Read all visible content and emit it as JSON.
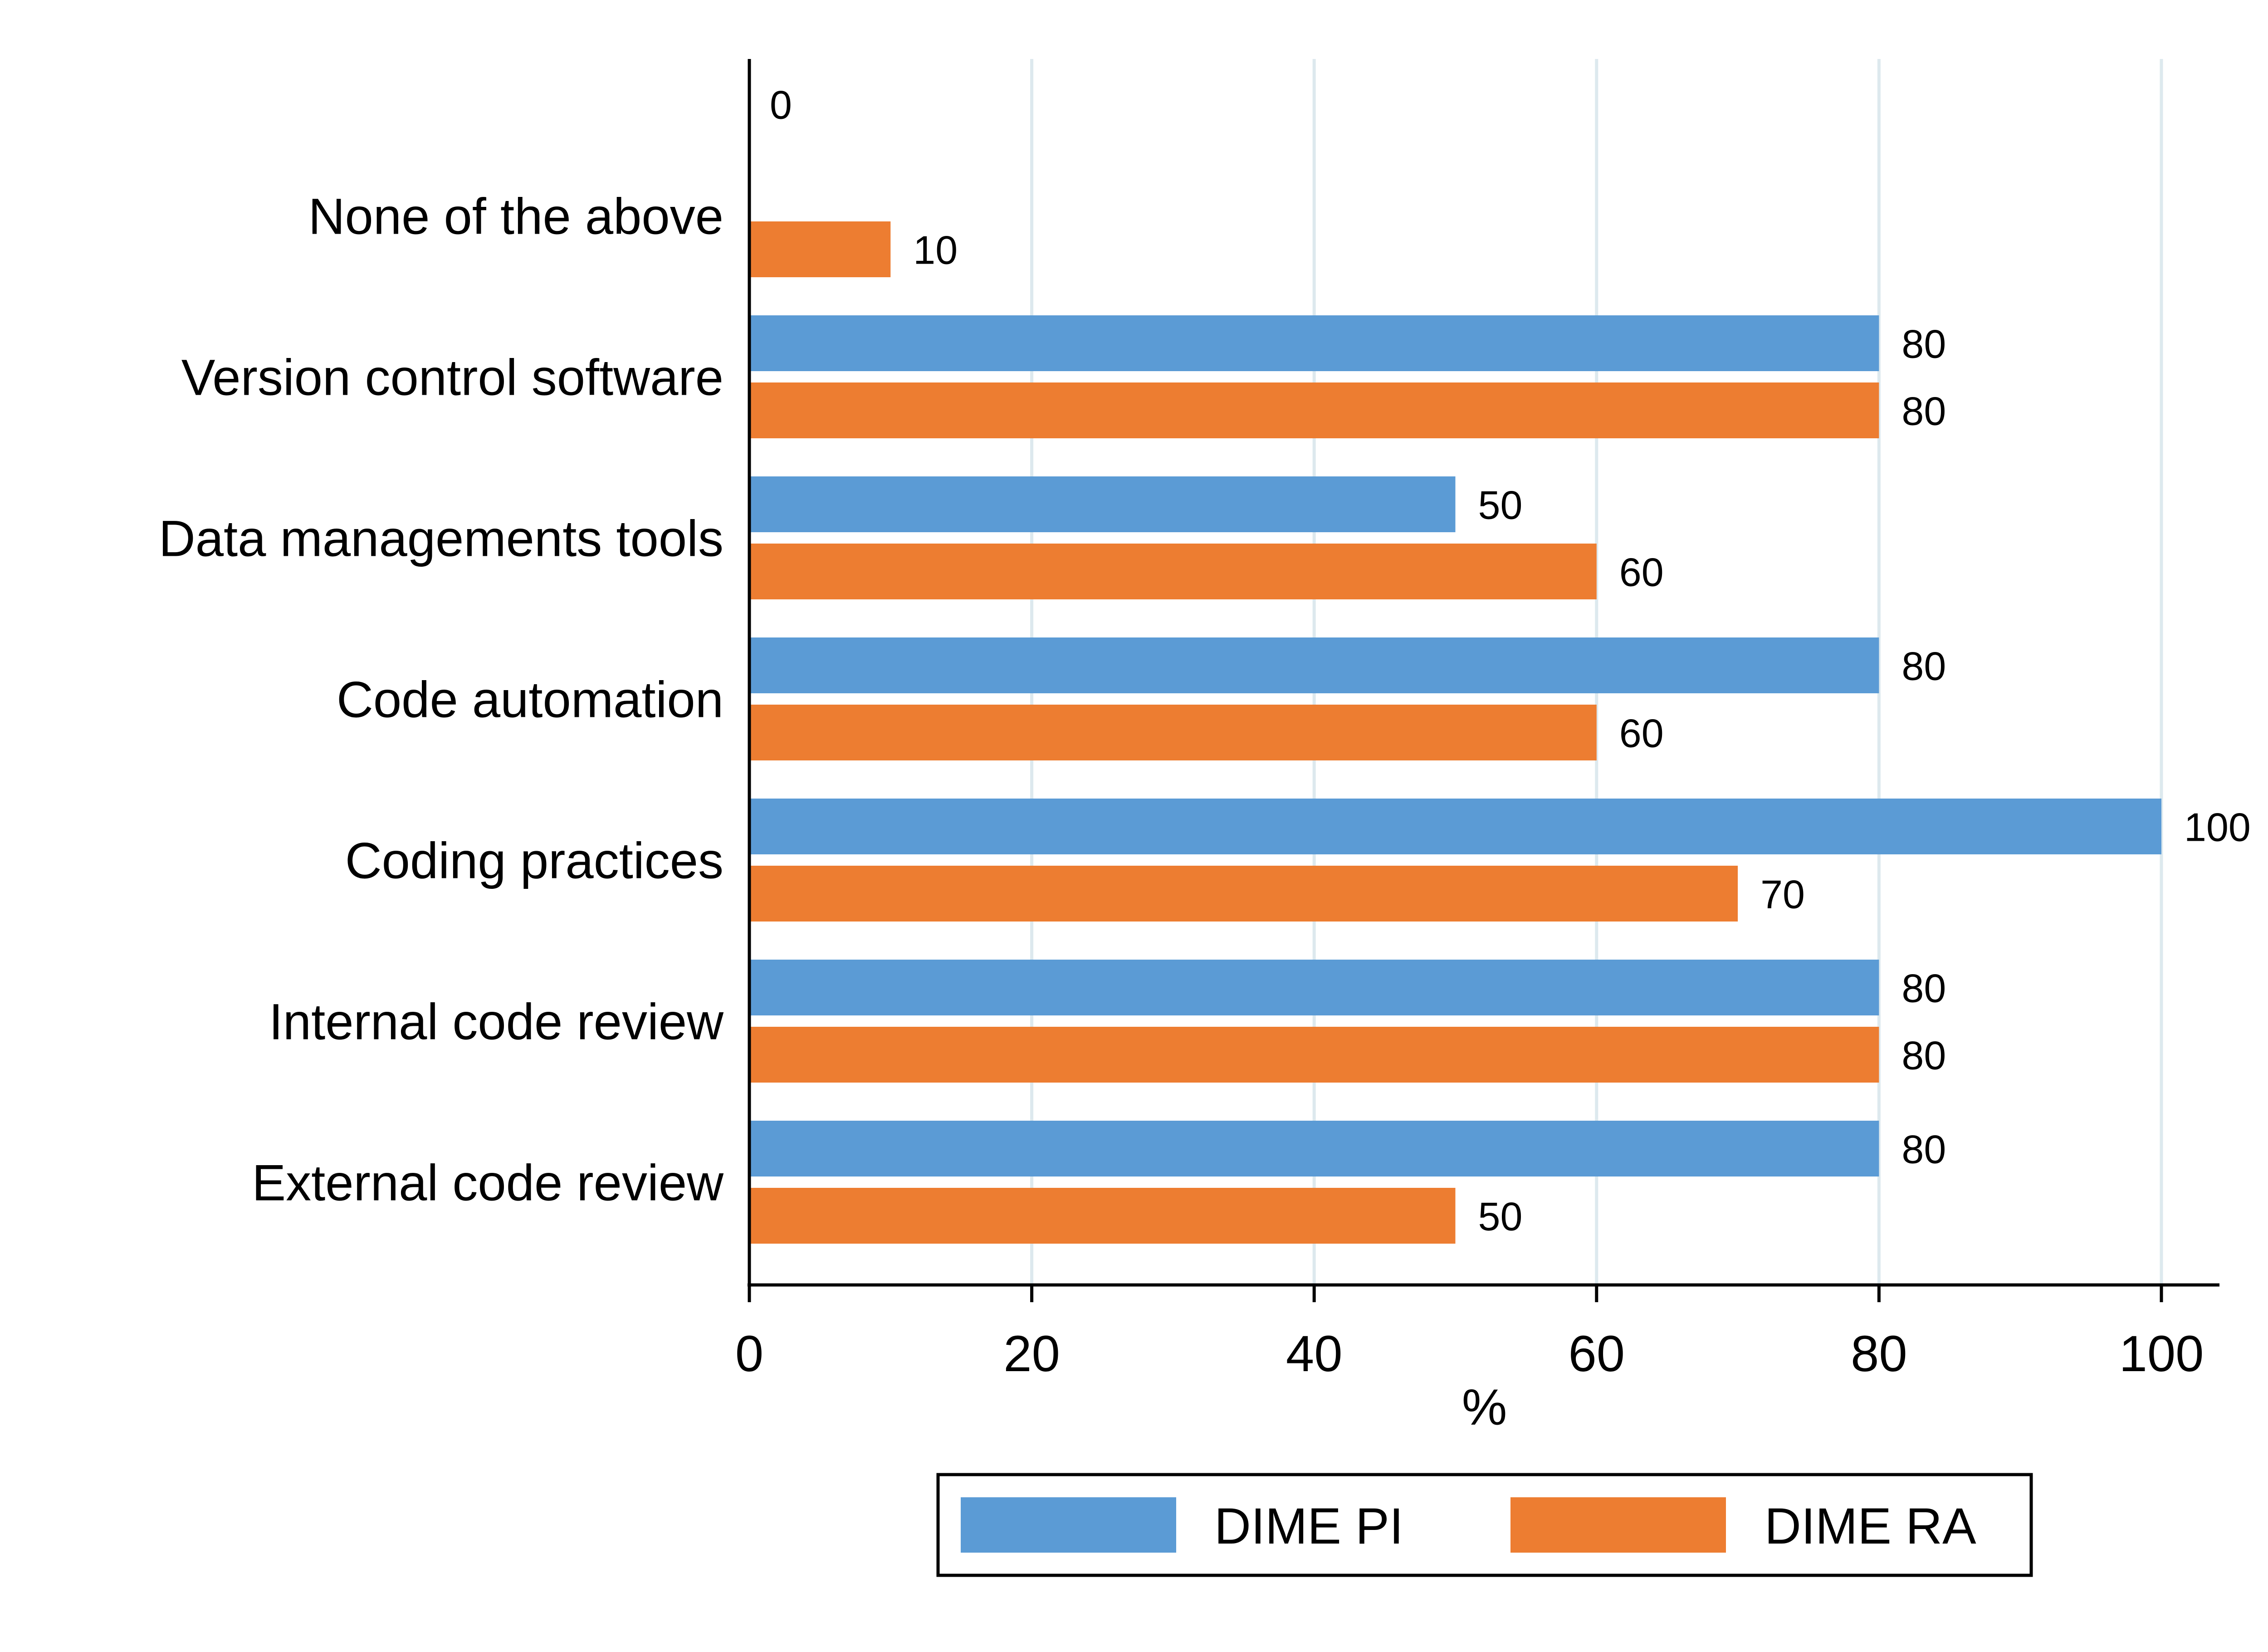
{
  "chart_data": {
    "type": "bar",
    "orientation": "horizontal",
    "categories": [
      "None of the above",
      "Version control software",
      "Data managements tools",
      "Code automation",
      "Coding practices",
      "Internal code review",
      "External code review"
    ],
    "series": [
      {
        "name": "DIME PI",
        "color": "#5b9bd5",
        "values": [
          0,
          80,
          50,
          80,
          100,
          80,
          80
        ]
      },
      {
        "name": "DIME RA",
        "color": "#ed7d31",
        "values": [
          10,
          80,
          60,
          60,
          70,
          80,
          50
        ]
      }
    ],
    "xlabel": "%",
    "xlim": [
      0,
      104
    ],
    "xticks": [
      0,
      20,
      40,
      60,
      80,
      100
    ],
    "grid": true,
    "legend_position": "bottom",
    "data_labels": true
  }
}
